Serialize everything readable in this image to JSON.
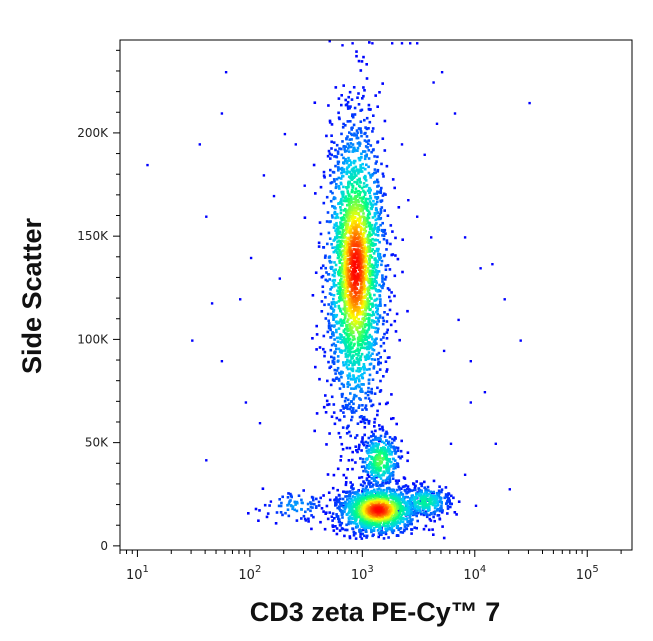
{
  "chart_data": {
    "type": "scatter",
    "subtype": "flow-cytometry density dot plot",
    "xlabel": "CD3 zeta PE-Cy™ 7",
    "ylabel": "Side Scatter",
    "x_scale": "log",
    "xlim": [
      7,
      250000
    ],
    "ylim": [
      -2000,
      245000
    ],
    "x_ticks": [
      {
        "value": 10,
        "base": "10",
        "exp": "1"
      },
      {
        "value": 100,
        "base": "10",
        "exp": "2"
      },
      {
        "value": 1000,
        "base": "10",
        "exp": "3"
      },
      {
        "value": 10000,
        "base": "10",
        "exp": "4"
      },
      {
        "value": 100000,
        "base": "10",
        "exp": "5"
      }
    ],
    "y_ticks": [
      {
        "value": 0,
        "label": "0"
      },
      {
        "value": 50000,
        "label": "50K"
      },
      {
        "value": 100000,
        "label": "100K"
      },
      {
        "value": 150000,
        "label": "150K"
      },
      {
        "value": 200000,
        "label": "200K"
      }
    ],
    "grid": false,
    "legend": "none",
    "color_scale": [
      "#0000ff",
      "#00c8ff",
      "#00ff80",
      "#ffff00",
      "#ff0000"
    ],
    "populations": [
      {
        "cx": 850,
        "cy": 135000,
        "sx_log10": 0.13,
        "sy": 35000,
        "points": 2600,
        "peak_density": 1.0
      },
      {
        "cx": 1350,
        "cy": 18000,
        "sx_log10": 0.18,
        "sy": 6000,
        "points": 1300,
        "peak_density": 1.0
      },
      {
        "cx": 1400,
        "cy": 42000,
        "sx_log10": 0.09,
        "sy": 7000,
        "points": 350,
        "peak_density": 0.6
      },
      {
        "cx": 3500,
        "cy": 22000,
        "sx_log10": 0.12,
        "sy": 4000,
        "points": 280,
        "peak_density": 0.45
      },
      {
        "cx": 250,
        "cy": 20000,
        "sx_log10": 0.15,
        "sy": 4000,
        "points": 80,
        "peak_density": 0.2
      }
    ],
    "sparse_events": [
      [
        60,
        230000
      ],
      [
        55,
        210000
      ],
      [
        40,
        160000
      ],
      [
        35,
        195000
      ],
      [
        45,
        118000
      ],
      [
        30,
        100000
      ],
      [
        55,
        90000
      ],
      [
        80,
        120000
      ],
      [
        100,
        140000
      ],
      [
        120,
        60000
      ],
      [
        40,
        42000
      ],
      [
        150,
        22000
      ],
      [
        180,
        130000
      ],
      [
        200,
        200000
      ],
      [
        250,
        195000
      ],
      [
        300,
        175000
      ],
      [
        12,
        185000
      ],
      [
        90,
        70000
      ],
      [
        130,
        180000
      ],
      [
        160,
        170000
      ],
      [
        2200,
        195000
      ],
      [
        2500,
        168000
      ],
      [
        3500,
        190000
      ],
      [
        4500,
        205000
      ],
      [
        4200,
        225000
      ],
      [
        5000,
        230000
      ],
      [
        6500,
        210000
      ],
      [
        3000,
        160000
      ],
      [
        4000,
        150000
      ],
      [
        8000,
        150000
      ],
      [
        11000,
        135000
      ],
      [
        14000,
        137000
      ],
      [
        18000,
        120000
      ],
      [
        30000,
        215000
      ],
      [
        25000,
        100000
      ],
      [
        7000,
        110000
      ],
      [
        5200,
        95000
      ],
      [
        9000,
        90000
      ],
      [
        12000,
        75000
      ],
      [
        15000,
        50000
      ],
      [
        9000,
        70000
      ],
      [
        6000,
        50000
      ],
      [
        20000,
        28000
      ],
      [
        8000,
        35000
      ],
      [
        10000,
        20000
      ],
      [
        500,
        245000
      ],
      [
        650,
        243000
      ],
      [
        800,
        244000
      ],
      [
        1200,
        244000
      ],
      [
        1800,
        244000
      ],
      [
        2200,
        244000
      ],
      [
        2600,
        244000
      ],
      [
        3000,
        244000
      ]
    ]
  }
}
